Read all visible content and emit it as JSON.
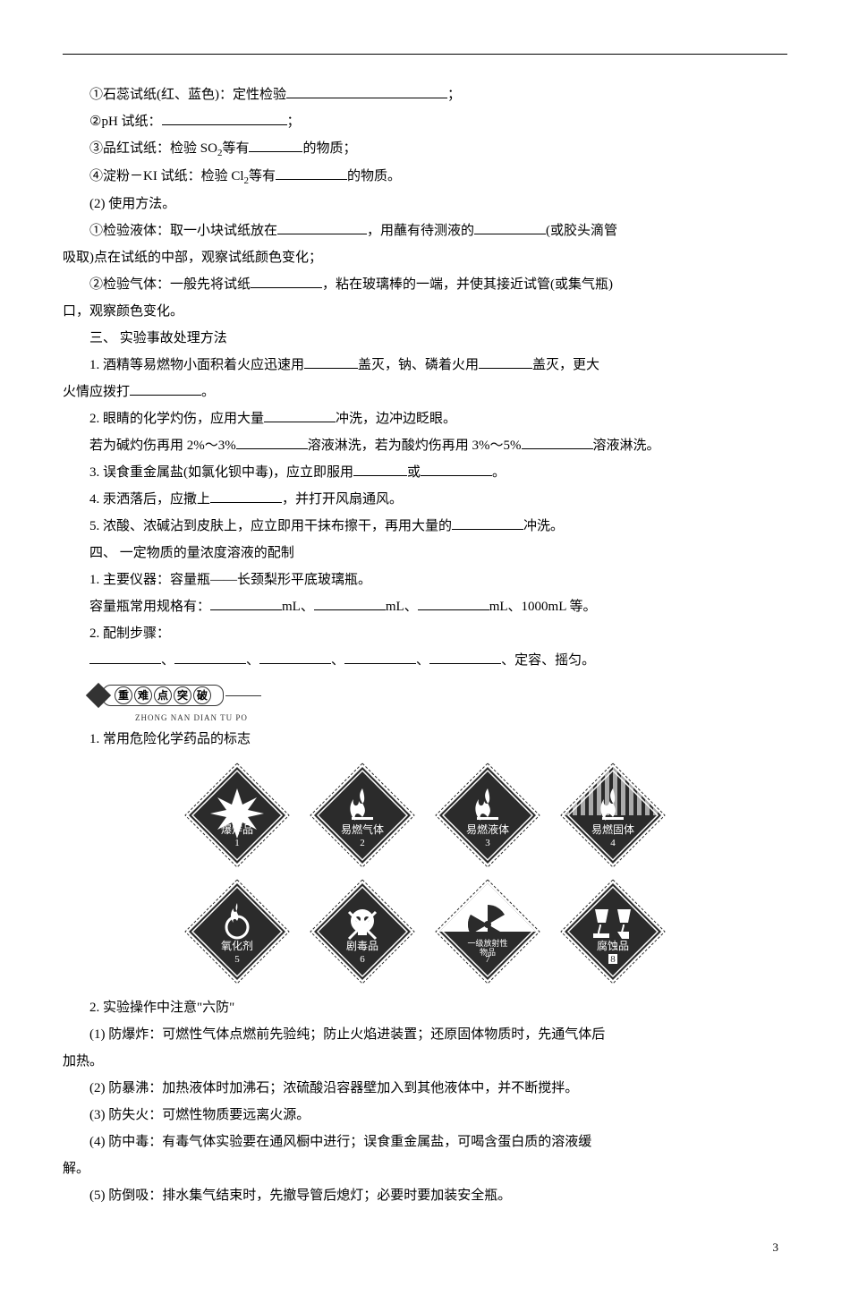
{
  "lines": {
    "l1": "①石蕊试纸(红、蓝色)：定性检验",
    "l1_tail": "；",
    "l2": "②pH 试纸：",
    "l2_tail": "；",
    "l3a": "③品红试纸：检验 SO",
    "l3b": "等有",
    "l3c": "的物质；",
    "l4a": "④淀粉－KI 试纸：检验 Cl",
    "l4b": "等有",
    "l4c": "的物质。",
    "l5": "(2) 使用方法。",
    "l6a": "①检验液体：取一小块试纸放在",
    "l6b": "，用蘸有待测液的",
    "l6c": "(或胶头滴管",
    "l7": "吸取)点在试纸的中部，观察试纸颜色变化；",
    "l8a": "②检验气体：一般先将试纸",
    "l8b": "，粘在玻璃棒的一端，并使其接近试管(或集气瓶)",
    "l9": "口，观察颜色变化。",
    "s3": "三、 实验事故处理方法",
    "p1a": "1. 酒精等易燃物小面积着火应迅速用",
    "p1b": "盖灭，钠、磷着火用",
    "p1c": "盖灭，更大",
    "p1d": "火情应拨打",
    "p1e": "。",
    "p2a": "2. 眼睛的化学灼伤，应用大量",
    "p2b": "冲洗，边冲边眨眼。",
    "p2c": "若为碱灼伤再用 2%～3%",
    "p2d": "溶液淋洗，若为酸灼伤再用 3%～5%",
    "p2e": "溶液淋洗。",
    "p3a": "3. 误食重金属盐(如氯化钡中毒)，应立即服用",
    "p3b": "或",
    "p3c": "。",
    "p4a": "4. 汞洒落后，应撒上",
    "p4b": "，并打开风扇通风。",
    "p5a": "5. 浓酸、浓碱沾到皮肤上，应立即用干抹布擦干，再用大量的",
    "p5b": "冲洗。",
    "s4": "四、 一定物质的量浓度溶液的配制",
    "q1": "1. 主要仪器：容量瓶——长颈梨形平底玻璃瓶。",
    "q2a": "容量瓶常用规格有：",
    "q2b": "mL、",
    "q2c": "mL、",
    "q2d": "mL、1000mL 等。",
    "q3": "2. 配制步骤：",
    "q3b": "、定容、摇匀。",
    "sep": "、",
    "banner_chars": [
      "重",
      "难",
      "点",
      "突",
      "破"
    ],
    "banner_pinyin": "ZHONG NAN DIAN TU PO",
    "r1": "1. 常用危险化学药品的标志",
    "r2": "2. 实验操作中注意\"六防\"",
    "d1": "(1) 防爆炸：可燃性气体点燃前先验纯；防止火焰进装置；还原固体物质时，先通气体后",
    "d1b": "加热。",
    "d2": "(2) 防暴沸：加热液体时加沸石；浓硫酸沿容器壁加入到其他液体中，并不断搅拌。",
    "d3": "(3) 防失火：可燃性物质要远离火源。",
    "d4": "(4) 防中毒：有毒气体实验要在通风橱中进行；误食重金属盐，可喝含蛋白质的溶液缓",
    "d4b": "解。",
    "d5": "(5) 防倒吸：排水集气结束时，先撤导管后熄灯；必要时要加装安全瓶。"
  },
  "hazards": [
    {
      "label": "爆炸品",
      "num": "1",
      "row": 1
    },
    {
      "label": "易燃气体",
      "num": "2",
      "row": 1
    },
    {
      "label": "易燃液体",
      "num": "3",
      "row": 1
    },
    {
      "label": "易燃固体",
      "num": "4",
      "row": 1
    },
    {
      "label": "氧化剂",
      "num": "5",
      "row": 2
    },
    {
      "label": "剧毒品",
      "num": "6",
      "row": 2
    },
    {
      "label": "一级放射性物品",
      "num": "7",
      "row": 2,
      "small": true
    },
    {
      "label": "腐蚀品",
      "num": "8",
      "row": 2,
      "boxnum": true
    }
  ],
  "colors": {
    "text": "#000000",
    "bg": "#ffffff",
    "hazard_dark": "#2b2b2b",
    "hazard_mid": "#555555",
    "hazard_light": "#ffffff"
  },
  "page_number": "3"
}
